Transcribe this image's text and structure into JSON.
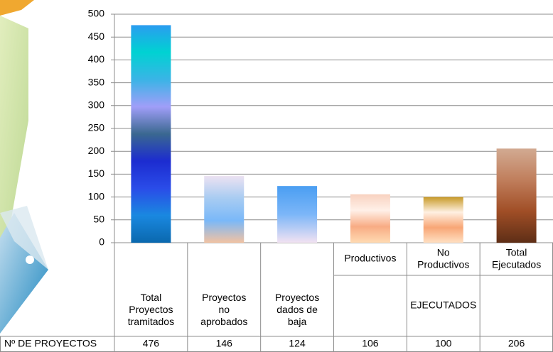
{
  "chart_data": {
    "type": "bar",
    "categories": [
      "Total\nProyectos\ntramitados",
      "Proyectos\nno\naprobados",
      "Proyectos\ndados de\nbaja",
      "Productivos",
      "No\nProductivos",
      "Total\nEjecutados"
    ],
    "category_groups": [
      null,
      null,
      null,
      "EJECUTADOS",
      "EJECUTADOS",
      "EJECUTADOS"
    ],
    "series": [
      {
        "name": "Nº DE PROYECTOS",
        "values": [
          476,
          146,
          124,
          106,
          100,
          206
        ],
        "colors": [
          [
            "#2a9cf0",
            "#00d2d2",
            "#3ab4e6",
            "#a09ef8",
            "#3a6890",
            "#1c2cd0",
            "#2a4ce8",
            "#1a88e0",
            "#0a68ae"
          ],
          [
            "#ece2f2",
            "#a8ccf2",
            "#7ab8f8",
            "#f2c2a2"
          ],
          [
            "#4a9ef2",
            "#7cb6f8",
            "#f2e2f2"
          ],
          [
            "#f8d2c0",
            "#fff0e8",
            "#f8ac84",
            "#ffdab2"
          ],
          [
            "#c89a28",
            "#fff0e2",
            "#f8a676",
            "#ffe0c2"
          ],
          [
            "#d2aa92",
            "#c07e5c",
            "#a04e26",
            "#5e2e16"
          ]
        ]
      }
    ],
    "ylim": [
      0,
      500
    ],
    "yticks": [
      0,
      50,
      100,
      150,
      200,
      250,
      300,
      350,
      400,
      450,
      500
    ]
  }
}
